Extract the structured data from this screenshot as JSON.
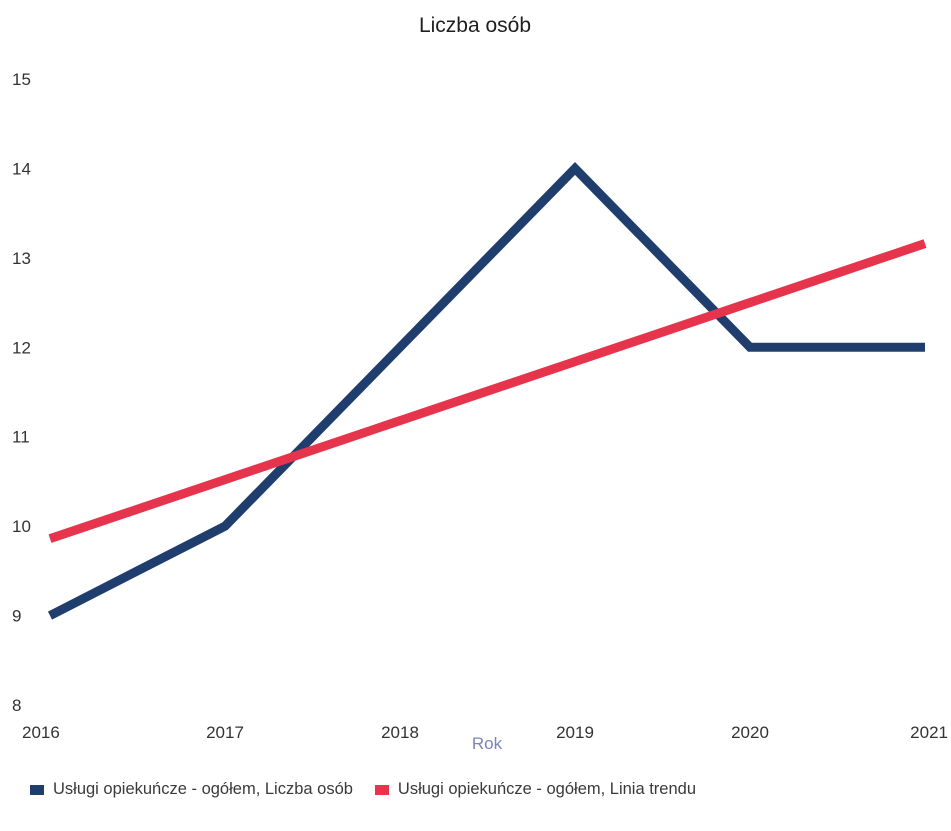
{
  "chart_data": {
    "type": "line",
    "title": "Liczba osób",
    "xlabel": "Rok",
    "ylabel": "",
    "x": [
      2016,
      2017,
      2018,
      2019,
      2020,
      2021
    ],
    "x_tick_labels": [
      "2016",
      "2017",
      "2018",
      "2019",
      "2020",
      "2021"
    ],
    "y_ticks": [
      8,
      9,
      10,
      11,
      12,
      13,
      14,
      15
    ],
    "y_tick_labels": [
      "8",
      "9",
      "10",
      "11",
      "12",
      "13",
      "14",
      "15"
    ],
    "ylim": [
      8,
      15
    ],
    "xlim": [
      2016,
      2021
    ],
    "grid": false,
    "legend_position": "bottom-left",
    "series": [
      {
        "name": "Usługi opiekuńcze - ogółem, Liczba osób",
        "color": "#1f3e6e",
        "values": [
          9,
          10,
          12,
          14,
          12,
          12
        ]
      },
      {
        "name": "Usługi opiekuńcze - ogółem, Linia trendu",
        "color": "#e5344c",
        "values": [
          9.86,
          10.52,
          11.18,
          11.84,
          12.5,
          13.16
        ]
      }
    ]
  }
}
